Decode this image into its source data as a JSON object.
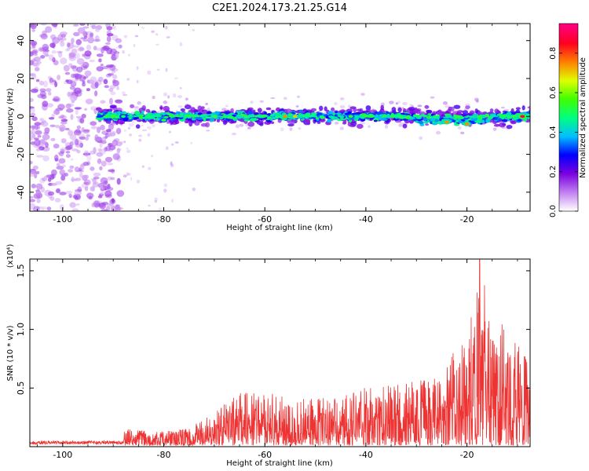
{
  "figure": {
    "title": "C2E1.2024.173.21.25.G14"
  },
  "chart_data": [
    {
      "type": "heatmap",
      "xlabel": "Height of straight line (km)",
      "ylabel": "Frequency (Hz)",
      "xlim": [
        -106.5,
        -7.5
      ],
      "ylim": [
        -50,
        49
      ],
      "xticks": [
        -100,
        -80,
        -60,
        -40,
        -20
      ],
      "yticks": [
        -40,
        -20,
        0,
        20,
        40
      ],
      "colorbar": {
        "label": "Normalized spectral amplitude",
        "range": [
          0,
          0.95
        ],
        "ticks": [
          0.0,
          0.2,
          0.4,
          0.6,
          0.8
        ],
        "tick_labels": [
          "0.0",
          "0.2",
          "0.4",
          "0.6",
          "0.8"
        ],
        "colormap": [
          "#ffffff",
          "#c080f0",
          "#7a00e0",
          "#0000ff",
          "#00c0ff",
          "#00ff80",
          "#40ff00",
          "#e0ff00",
          "#ff8000",
          "#ff0020",
          "#ff0080"
        ]
      },
      "band_center_hz": 0,
      "band_halfwidth_hz": 3,
      "strong_spots": [
        {
          "x": -56,
          "y": 0,
          "amp": 0.75
        },
        {
          "x": -54,
          "y": 0,
          "amp": 0.7
        },
        {
          "x": -43,
          "y": 0,
          "amp": 0.55
        },
        {
          "x": -24,
          "y": -3,
          "amp": 0.75
        },
        {
          "x": -20,
          "y": -4,
          "amp": 0.75
        },
        {
          "x": -9,
          "y": 0,
          "amp": 0.9
        },
        {
          "x": -80,
          "y": -2,
          "amp": 0.55
        },
        {
          "x": -88,
          "y": 0,
          "amp": 0.5
        }
      ]
    },
    {
      "type": "line",
      "xlabel": "Height of straight line (km)",
      "ylabel": "SNR (10 * v/v)",
      "yunit": "(x10⁴)",
      "xlim": [
        -106.5,
        -7.5
      ],
      "ylim": [
        0,
        1.6
      ],
      "xticks": [
        -100,
        -80,
        -60,
        -40,
        -20
      ],
      "yticks": [
        0.5,
        1.0,
        1.5
      ],
      "ytick_labels": [
        "0.5",
        "1.0",
        "1.5"
      ],
      "color": "#ee3333",
      "envelope": [
        {
          "x": -106.5,
          "y": 0.05
        },
        {
          "x": -90,
          "y": 0.06
        },
        {
          "x": -87,
          "y": 0.14
        },
        {
          "x": -80,
          "y": 0.12
        },
        {
          "x": -75,
          "y": 0.15
        },
        {
          "x": -70,
          "y": 0.3
        },
        {
          "x": -66,
          "y": 0.45
        },
        {
          "x": -60,
          "y": 0.45
        },
        {
          "x": -55,
          "y": 0.42
        },
        {
          "x": -50,
          "y": 0.4
        },
        {
          "x": -45,
          "y": 0.42
        },
        {
          "x": -40,
          "y": 0.5
        },
        {
          "x": -35,
          "y": 0.52
        },
        {
          "x": -30,
          "y": 0.55
        },
        {
          "x": -25,
          "y": 0.6
        },
        {
          "x": -22,
          "y": 0.85
        },
        {
          "x": -20,
          "y": 0.95
        },
        {
          "x": -17.5,
          "y": 1.6
        },
        {
          "x": -15,
          "y": 1.25
        },
        {
          "x": -12,
          "y": 0.95
        },
        {
          "x": -7.5,
          "y": 0.8
        }
      ]
    }
  ]
}
